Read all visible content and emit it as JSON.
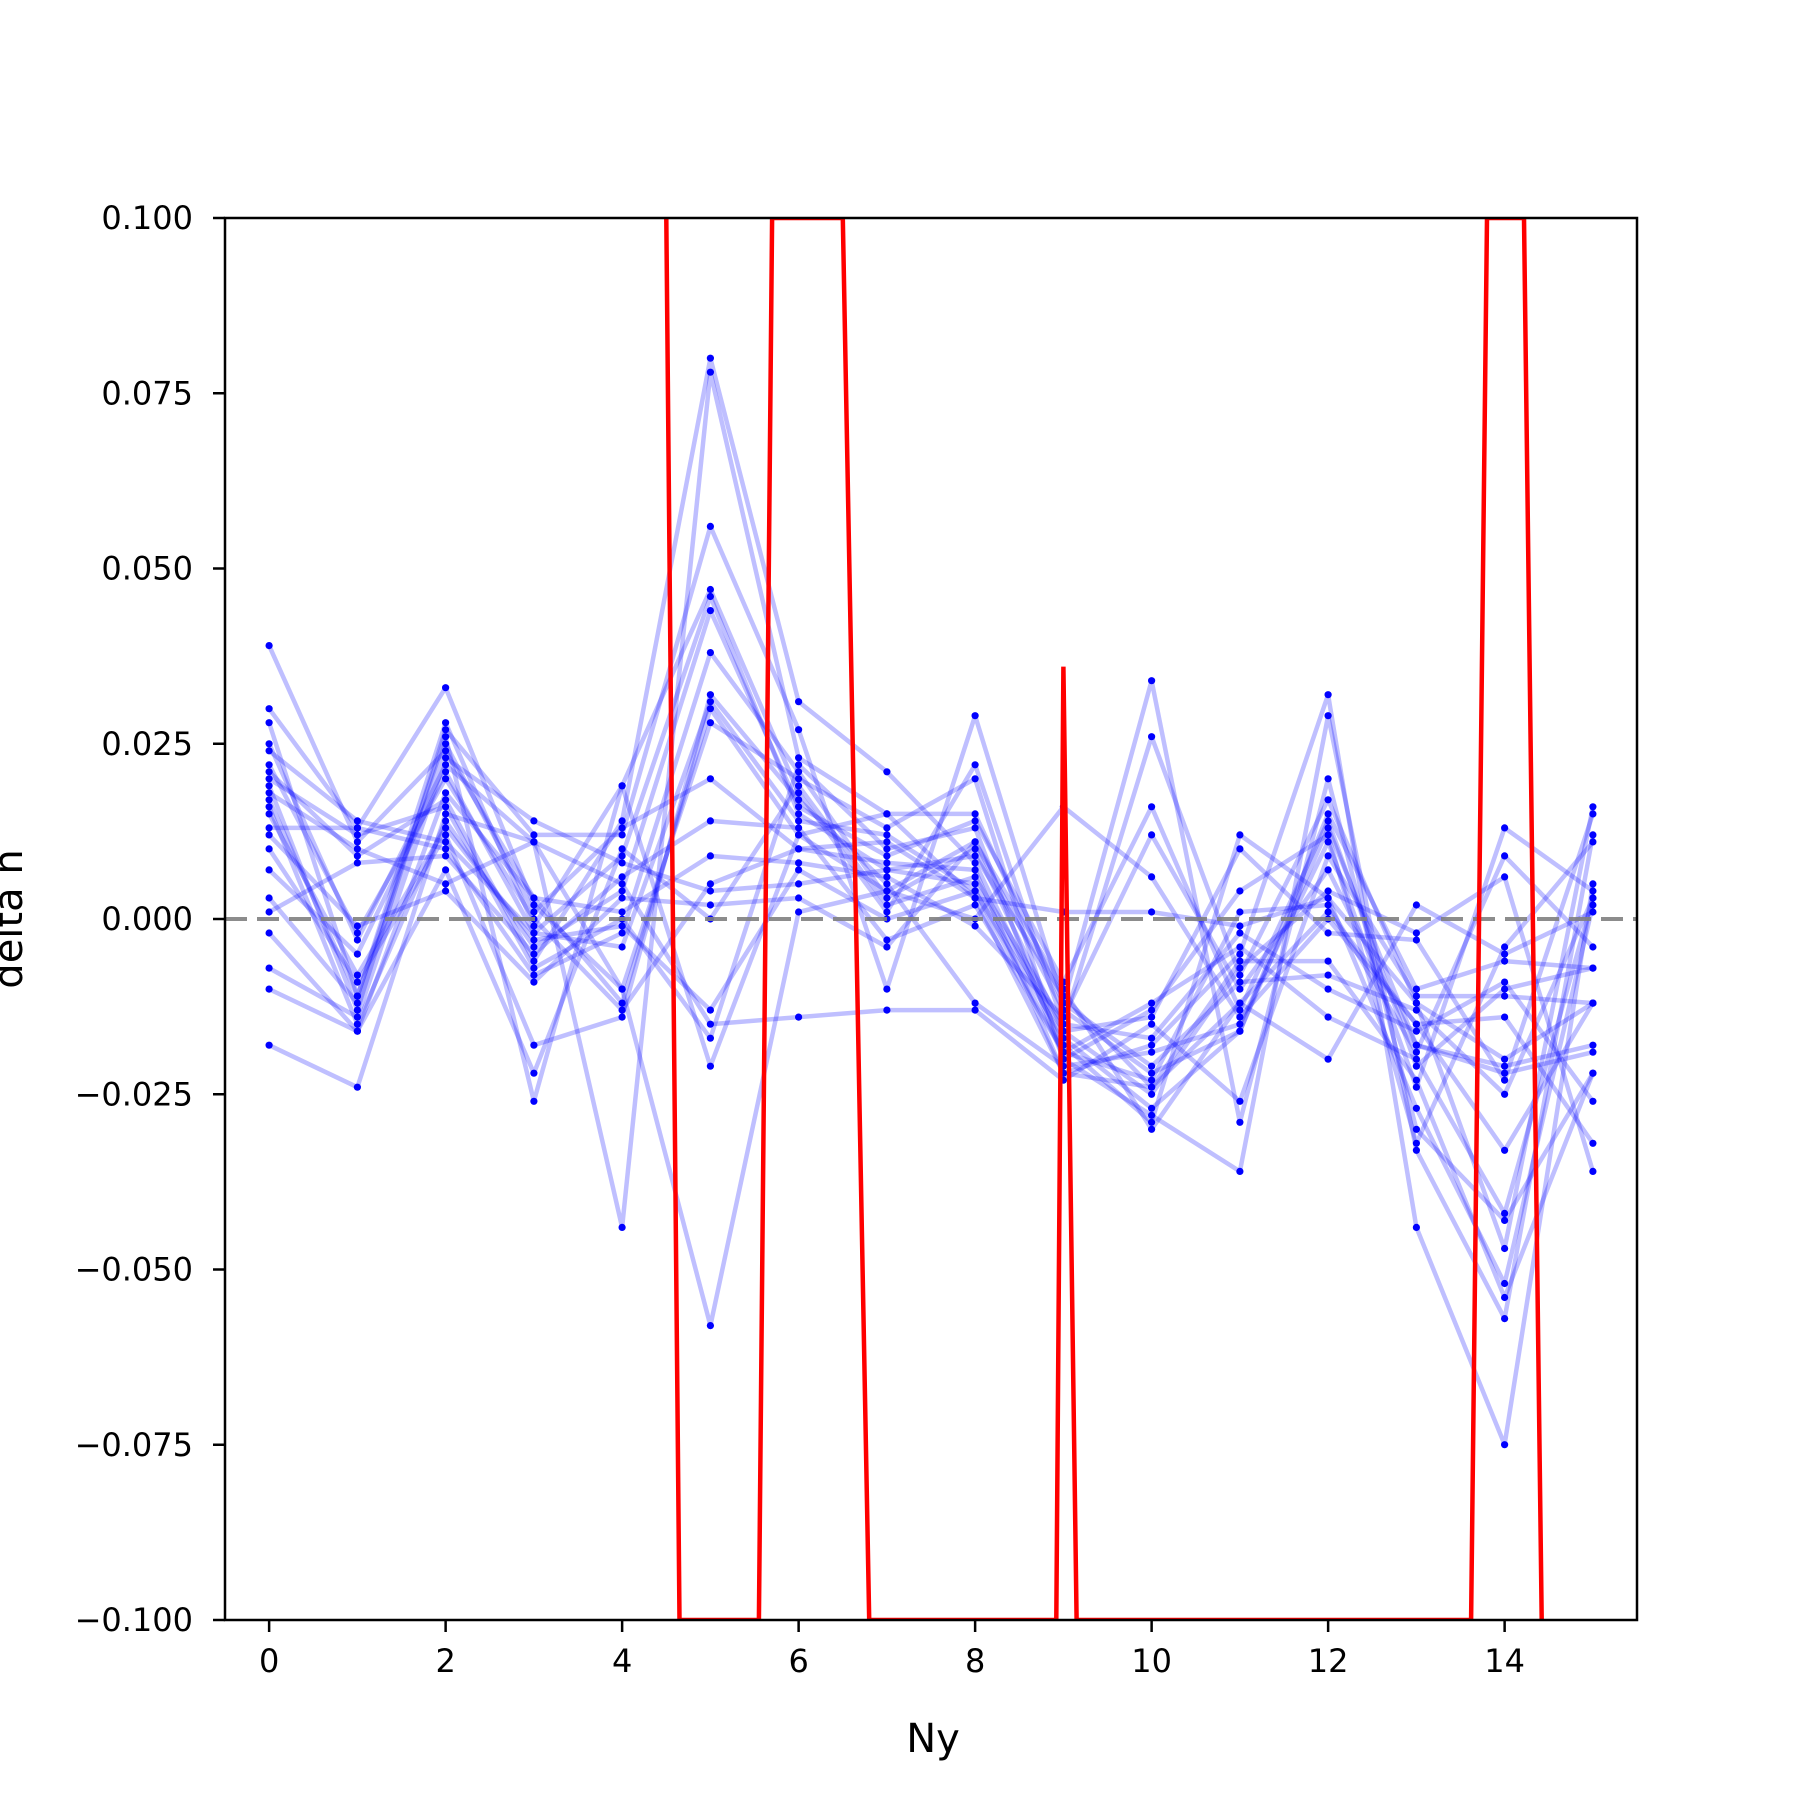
{
  "chart_data": {
    "type": "line",
    "title": "",
    "xlabel": "Ny",
    "ylabel": "delta n",
    "xlim": [
      -0.5,
      15.5
    ],
    "ylim": [
      -0.1,
      0.1
    ],
    "xticks": [
      0,
      2,
      4,
      6,
      8,
      10,
      12,
      14
    ],
    "xtick_labels": [
      "0",
      "2",
      "4",
      "6",
      "8",
      "10",
      "12",
      "14"
    ],
    "yticks": [
      -0.1,
      -0.075,
      -0.05,
      -0.025,
      0.0,
      0.025,
      0.05,
      0.075,
      0.1
    ],
    "ytick_labels": [
      "−0.100",
      "−0.075",
      "−0.050",
      "−0.025",
      "0.000",
      "0.025",
      "0.050",
      "0.075",
      "0.100"
    ],
    "grid": false,
    "legend": "none",
    "reference_line": {
      "y": 0.0,
      "style": "dashed",
      "color": "#808080"
    },
    "colors": {
      "samples": "#0000ff",
      "mean": "#ff0000"
    },
    "x": [
      0,
      1,
      2,
      3,
      4,
      5,
      6,
      7,
      8,
      9,
      10,
      11,
      12,
      13,
      14,
      15
    ],
    "samples": [
      [
        0.039,
        0.011,
        0.024,
        0.003,
        -0.012,
        0.03,
        0.012,
        0.004,
        0.011,
        -0.013,
        -0.022,
        -0.016,
        0.013,
        -0.018,
        -0.022,
        -0.019
      ],
      [
        0.03,
        0.013,
        0.033,
        0.002,
        -0.01,
        0.028,
        0.02,
        0.013,
        0.02,
        -0.02,
        -0.028,
        -0.036,
        0.029,
        -0.033,
        -0.057,
        0.012
      ],
      [
        0.028,
        -0.011,
        0.026,
        -0.026,
        0.019,
        0.047,
        0.018,
        0.001,
        0.022,
        -0.015,
        0.026,
        -0.008,
        0.017,
        -0.012,
        -0.047,
        0.016
      ],
      [
        0.025,
        -0.003,
        0.022,
        0.011,
        -0.044,
        0.078,
        0.023,
        0.015,
        0.003,
        -0.022,
        -0.018,
        -0.005,
        0.032,
        -0.044,
        -0.075,
        0.005
      ],
      [
        0.021,
        0.009,
        0.017,
        -0.006,
        0.014,
        0.08,
        0.031,
        0.021,
        0.008,
        -0.018,
        -0.029,
        0.012,
        0.003,
        -0.027,
        -0.052,
        0.002
      ],
      [
        0.019,
        -0.013,
        0.027,
        0.012,
        0.012,
        0.056,
        0.027,
        -0.01,
        0.029,
        -0.012,
        0.034,
        -0.029,
        0.02,
        -0.03,
        -0.043,
        -0.022
      ],
      [
        0.016,
        -0.015,
        0.014,
        -0.004,
        0.004,
        0.044,
        0.016,
        0.009,
        0.014,
        -0.009,
        0.016,
        -0.013,
        0.014,
        -0.021,
        -0.01,
        -0.007
      ],
      [
        0.013,
        0.013,
        0.01,
        -0.008,
        -0.002,
        0.038,
        0.021,
        0.003,
        0.01,
        -0.016,
        -0.014,
        0.01,
        -0.002,
        -0.003,
        -0.023,
        0.015
      ],
      [
        0.01,
        -0.009,
        0.012,
        -0.018,
        -0.014,
        0.032,
        0.017,
        0.005,
        -0.012,
        -0.021,
        -0.019,
        -0.015,
        0.011,
        -0.024,
        0.013,
        0.004
      ],
      [
        0.007,
        -0.005,
        0.021,
        -0.002,
        -0.004,
        0.031,
        0.014,
        0.012,
        0.004,
        -0.017,
        -0.027,
        -0.016,
        0.015,
        -0.01,
        -0.006,
        -0.007
      ],
      [
        0.003,
        -0.012,
        0.025,
        0.001,
        0.013,
        0.02,
        0.01,
        0.008,
        0.007,
        -0.022,
        -0.024,
        -0.012,
        0.001,
        -0.015,
        -0.033,
        -0.012
      ],
      [
        0.001,
        0.008,
        0.009,
        -0.005,
        0.006,
        0.014,
        0.013,
        -0.003,
        0.002,
        -0.019,
        -0.012,
        -0.004,
        -0.014,
        -0.02,
        -0.042,
        0.003
      ],
      [
        -0.002,
        -0.016,
        0.018,
        0.003,
        0.001,
        0.009,
        0.008,
        0.006,
        -0.001,
        -0.014,
        0.012,
        -0.01,
        0.007,
        -0.018,
        -0.021,
        -0.018
      ],
      [
        -0.007,
        -0.014,
        0.023,
        0.014,
        0.008,
        0.004,
        0.005,
        0.007,
        0.009,
        -0.011,
        -0.024,
        -0.006,
        -0.006,
        -0.023,
        -0.054,
        -0.022
      ],
      [
        -0.01,
        -0.016,
        0.007,
        -0.022,
        0.01,
        0.0,
        0.019,
        0.002,
        0.006,
        -0.015,
        -0.017,
        -0.002,
        -0.01,
        -0.016,
        -0.009,
        -0.026
      ],
      [
        -0.018,
        -0.024,
        0.015,
        0.011,
        -0.01,
        -0.058,
        0.001,
        0.004,
        0.0,
        0.016,
        0.006,
        -0.014,
        0.0,
        -0.015,
        -0.014,
        -0.032
      ],
      [
        0.017,
        -0.011,
        0.028,
        -0.001,
        0.019,
        -0.021,
        0.012,
        0.015,
        0.015,
        -0.012,
        -0.021,
        -0.009,
        -0.008,
        -0.013,
        -0.025,
        0.003
      ],
      [
        0.02,
        0.012,
        0.016,
        -0.007,
        0.0,
        -0.017,
        0.022,
        0.01,
        0.013,
        -0.02,
        -0.013,
        0.004,
        0.012,
        -0.032,
        -0.004,
        0.011
      ],
      [
        0.018,
        0.01,
        0.005,
        0.011,
        0.005,
        -0.015,
        -0.014,
        -0.013,
        -0.013,
        -0.023,
        -0.015,
        -0.026,
        0.009,
        -0.011,
        -0.011,
        -0.012
      ],
      [
        0.015,
        -0.008,
        0.013,
        -0.003,
        -0.001,
        -0.013,
        0.007,
        0.0,
        0.004,
        -0.019,
        -0.023,
        0.001,
        0.002,
        -0.019,
        0.009,
        -0.004
      ],
      [
        0.012,
        -0.001,
        0.004,
        -0.009,
        0.003,
        0.002,
        0.003,
        -0.004,
        0.011,
        -0.01,
        -0.03,
        -0.012,
        -0.02,
        0.002,
        -0.005,
        0.001
      ],
      [
        0.022,
        -0.002,
        0.02,
        0.0,
        -0.013,
        0.005,
        0.01,
        0.011,
        0.003,
        0.001,
        0.001,
        -0.001,
        0.003,
        -0.012,
        -0.02,
        -0.012
      ],
      [
        0.024,
        0.014,
        0.011,
        -0.002,
        0.009,
        0.046,
        0.015,
        0.007,
        0.005,
        -0.016,
        -0.025,
        -0.007,
        0.004,
        -0.002,
        0.006,
        -0.036
      ]
    ],
    "mean_curve": {
      "x": [
        4.5,
        4.65,
        5.55,
        5.7,
        6.5,
        6.8,
        8.92,
        9.0,
        9.15,
        13.62,
        13.8,
        14.22,
        14.42
      ],
      "y": [
        0.1,
        -0.1,
        -0.1,
        0.1,
        0.1,
        -0.1,
        -0.1,
        0.036,
        -0.1,
        -0.1,
        0.1,
        0.1,
        -0.1
      ]
    }
  }
}
